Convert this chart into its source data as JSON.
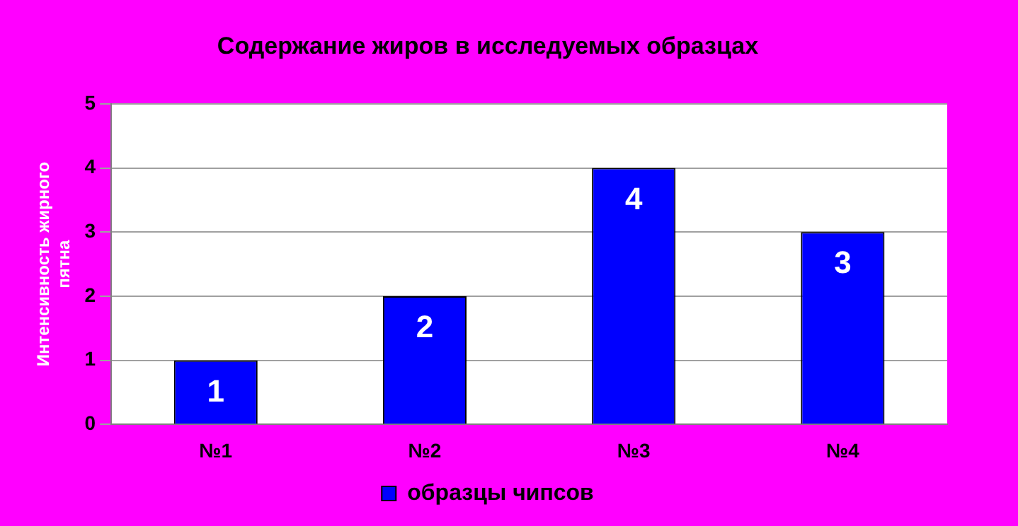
{
  "chart_data": {
    "type": "bar",
    "title": "Содержание жиров в исследуемых образцах",
    "ylabel": "Интенсивность жирного пятна",
    "categories": [
      "№1",
      "№2",
      "№3",
      "№4"
    ],
    "series": [
      {
        "name": "образцы чипсов",
        "color": "#0000ff",
        "values": [
          1,
          2,
          4,
          3
        ]
      }
    ],
    "ylim": [
      0,
      5
    ],
    "yticks": [
      0,
      1,
      2,
      3,
      4,
      5
    ],
    "grid": "y",
    "legend": "bottom",
    "data_labels": true
  }
}
